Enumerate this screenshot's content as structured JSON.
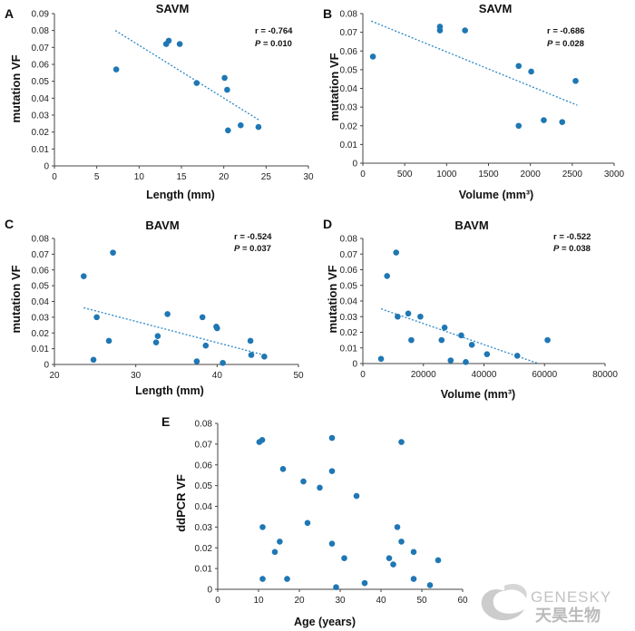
{
  "colors": {
    "points": "#1f77b4",
    "trend": "#2b88c8",
    "axis": "#444444"
  },
  "watermark": {
    "brand": "GENESKY",
    "cn": "天昊生物"
  },
  "chart_data": [
    {
      "panel": "A",
      "type": "scatter",
      "title": "SAVM",
      "xlabel": "Length (mm)",
      "ylabel": "mutation VF",
      "stat_r": "r = -0.764",
      "stat_p": "P = 0.010",
      "xlim": [
        0,
        30
      ],
      "ylim": [
        0,
        0.09
      ],
      "xticks": [
        "0",
        "5",
        "10",
        "15",
        "20",
        "25",
        "30"
      ],
      "yticks": [
        "0",
        "0.01",
        "0.02",
        "0.03",
        "0.04",
        "0.05",
        "0.06",
        "0.07",
        "0.08",
        "0.09"
      ],
      "points": [
        [
          7.3,
          0.057
        ],
        [
          13.2,
          0.072
        ],
        [
          13.5,
          0.074
        ],
        [
          14.8,
          0.072
        ],
        [
          16.8,
          0.049
        ],
        [
          20.1,
          0.052
        ],
        [
          20.4,
          0.045
        ],
        [
          20.5,
          0.021
        ],
        [
          22.0,
          0.024
        ],
        [
          24.1,
          0.023
        ]
      ],
      "trendline": [
        [
          7.2,
          0.08
        ],
        [
          24.2,
          0.027
        ]
      ]
    },
    {
      "panel": "B",
      "type": "scatter",
      "title": "SAVM",
      "xlabel": "Volume (mm³)",
      "ylabel": "mutation VF",
      "stat_r": "r = -0.686",
      "stat_p": "P = 0.028",
      "xlim": [
        0,
        3000
      ],
      "ylim": [
        0,
        0.08
      ],
      "xticks": [
        "0",
        "500",
        "1000",
        "1500",
        "2000",
        "2500",
        "3000"
      ],
      "yticks": [
        "0",
        "0.01",
        "0.02",
        "0.03",
        "0.04",
        "0.05",
        "0.06",
        "0.07",
        "0.08"
      ],
      "points": [
        [
          120,
          0.057
        ],
        [
          920,
          0.073
        ],
        [
          920,
          0.071
        ],
        [
          1220,
          0.071
        ],
        [
          1860,
          0.052
        ],
        [
          2010,
          0.049
        ],
        [
          1860,
          0.02
        ],
        [
          2160,
          0.023
        ],
        [
          2380,
          0.022
        ],
        [
          2540,
          0.044
        ]
      ],
      "trendline": [
        [
          100,
          0.076
        ],
        [
          2560,
          0.031
        ]
      ]
    },
    {
      "panel": "C",
      "type": "scatter",
      "title": "BAVM",
      "xlabel": "Length (mm)",
      "ylabel": "mutation VF",
      "stat_r": "r = -0.524",
      "stat_p": "P = 0.037",
      "xlim": [
        20,
        50
      ],
      "ylim": [
        0,
        0.08
      ],
      "xticks": [
        "20",
        "30",
        "40",
        "50"
      ],
      "yticks": [
        "0",
        "0.01",
        "0.02",
        "0.03",
        "0.04",
        "0.05",
        "0.06",
        "0.07",
        "0.08"
      ],
      "points": [
        [
          23.6,
          0.056
        ],
        [
          24.8,
          0.003
        ],
        [
          25.2,
          0.03
        ],
        [
          26.7,
          0.015
        ],
        [
          27.2,
          0.071
        ],
        [
          32.5,
          0.014
        ],
        [
          32.7,
          0.018
        ],
        [
          33.9,
          0.032
        ],
        [
          37.5,
          0.002
        ],
        [
          38.2,
          0.03
        ],
        [
          38.6,
          0.012
        ],
        [
          39.9,
          0.024
        ],
        [
          40.0,
          0.023
        ],
        [
          40.7,
          0.001
        ],
        [
          44.1,
          0.015
        ],
        [
          44.2,
          0.006
        ],
        [
          45.8,
          0.005
        ]
      ],
      "trendline": [
        [
          23.6,
          0.036
        ],
        [
          45.8,
          0.006
        ]
      ]
    },
    {
      "panel": "D",
      "type": "scatter",
      "title": "BAVM",
      "xlabel": "Volume (mm³)",
      "ylabel": "mutation VF",
      "stat_r": "r = -0.522",
      "stat_p": "P = 0.038",
      "xlim": [
        0,
        80000
      ],
      "ylim": [
        0,
        0.08
      ],
      "xticks": [
        "0",
        "20000",
        "40000",
        "60000",
        "80000"
      ],
      "yticks": [
        "0",
        "0.01",
        "0.02",
        "0.03",
        "0.04",
        "0.05",
        "0.06",
        "0.07",
        "0.08"
      ],
      "points": [
        [
          6000,
          0.003
        ],
        [
          8000,
          0.056
        ],
        [
          11000,
          0.071
        ],
        [
          11500,
          0.03
        ],
        [
          15000,
          0.032
        ],
        [
          16000,
          0.015
        ],
        [
          19000,
          0.03
        ],
        [
          26000,
          0.015
        ],
        [
          27000,
          0.023
        ],
        [
          29000,
          0.002
        ],
        [
          32500,
          0.018
        ],
        [
          34000,
          0.001
        ],
        [
          36000,
          0.012
        ],
        [
          41000,
          0.006
        ],
        [
          51000,
          0.005
        ],
        [
          61000,
          0.015
        ]
      ],
      "trendline": [
        [
          6000,
          0.035
        ],
        [
          58000,
          0.0
        ]
      ]
    },
    {
      "panel": "E",
      "type": "scatter",
      "title": "",
      "xlabel": "Age (years)",
      "ylabel": "ddPCR VF",
      "xlim": [
        0,
        60
      ],
      "ylim": [
        0,
        0.08
      ],
      "xticks": [
        "0",
        "10",
        "20",
        "30",
        "40",
        "50",
        "60"
      ],
      "yticks": [
        "0",
        "0.01",
        "0.02",
        "0.03",
        "0.04",
        "0.05",
        "0.06",
        "0.07",
        "0.08"
      ],
      "points": [
        [
          10.2,
          0.071
        ],
        [
          10.9,
          0.072
        ],
        [
          11.0,
          0.03
        ],
        [
          11.0,
          0.005
        ],
        [
          14.0,
          0.018
        ],
        [
          15.2,
          0.023
        ],
        [
          16.0,
          0.058
        ],
        [
          17.0,
          0.005
        ],
        [
          21.0,
          0.052
        ],
        [
          22.0,
          0.032
        ],
        [
          25.0,
          0.049
        ],
        [
          28.0,
          0.073
        ],
        [
          28.0,
          0.057
        ],
        [
          28.0,
          0.022
        ],
        [
          29.0,
          0.001
        ],
        [
          31.0,
          0.015
        ],
        [
          34.0,
          0.045
        ],
        [
          36.0,
          0.003
        ],
        [
          42.0,
          0.015
        ],
        [
          43.0,
          0.012
        ],
        [
          44.0,
          0.03
        ],
        [
          45.0,
          0.071
        ],
        [
          45.0,
          0.023
        ],
        [
          48.0,
          0.018
        ],
        [
          48.0,
          0.005
        ],
        [
          52.0,
          0.002
        ],
        [
          54.0,
          0.014
        ]
      ]
    }
  ]
}
